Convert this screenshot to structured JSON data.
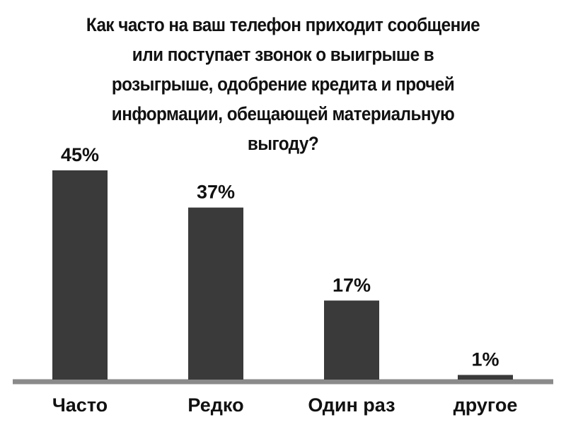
{
  "chart_data": {
    "type": "bar",
    "title": "Как часто на ваш телефон приходит сообщение\nили поступает звонок о выигрыше в\nрозыгрыше, одобрение кредита и прочей\nинформации, обещающей материальную\nвыгоду?",
    "categories": [
      "Часто",
      "Редко",
      "Один раз",
      "другое"
    ],
    "values": [
      45,
      37,
      17,
      1
    ],
    "value_labels": [
      "45%",
      "37%",
      "17%",
      "1%"
    ],
    "color": "#3a3a3a"
  }
}
